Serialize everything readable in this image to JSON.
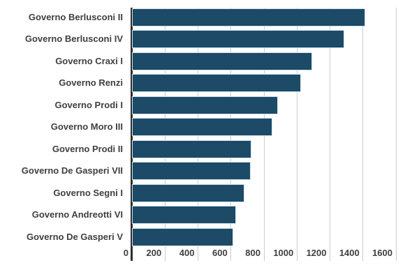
{
  "chart_data": {
    "type": "bar",
    "orientation": "horizontal",
    "title": "",
    "xlabel": "",
    "ylabel": "",
    "categories": [
      "Governo Berlusconi II",
      "Governo Berlusconi IV",
      "Governo Craxi I",
      "Governo Renzi",
      "Governo Prodi I",
      "Governo Moro III",
      "Governo Prodi II",
      "Governo De Gasperi VII",
      "Governo Segni I",
      "Governo Andreotti VI",
      "Governo De Gasperi V"
    ],
    "values": [
      1412,
      1287,
      1093,
      1024,
      886,
      852,
      722,
      721,
      683,
      629,
      614
    ],
    "xlim": [
      0,
      1600
    ],
    "xticks": [
      0,
      200,
      400,
      600,
      800,
      1000,
      1200,
      1400,
      1600
    ],
    "xtick_labels": [
      "0",
      "200",
      "400",
      "600",
      "800",
      "1000",
      "1200",
      "1400",
      "1600"
    ],
    "grid": true,
    "legend": false,
    "colors": {
      "bar": "#1c4a67",
      "bar_stroke": "#cfe3ee",
      "gridline": "#cccccc",
      "axis_line": "#2e2e2e",
      "text": "#3f3f3f",
      "background": "#ffffff"
    }
  }
}
